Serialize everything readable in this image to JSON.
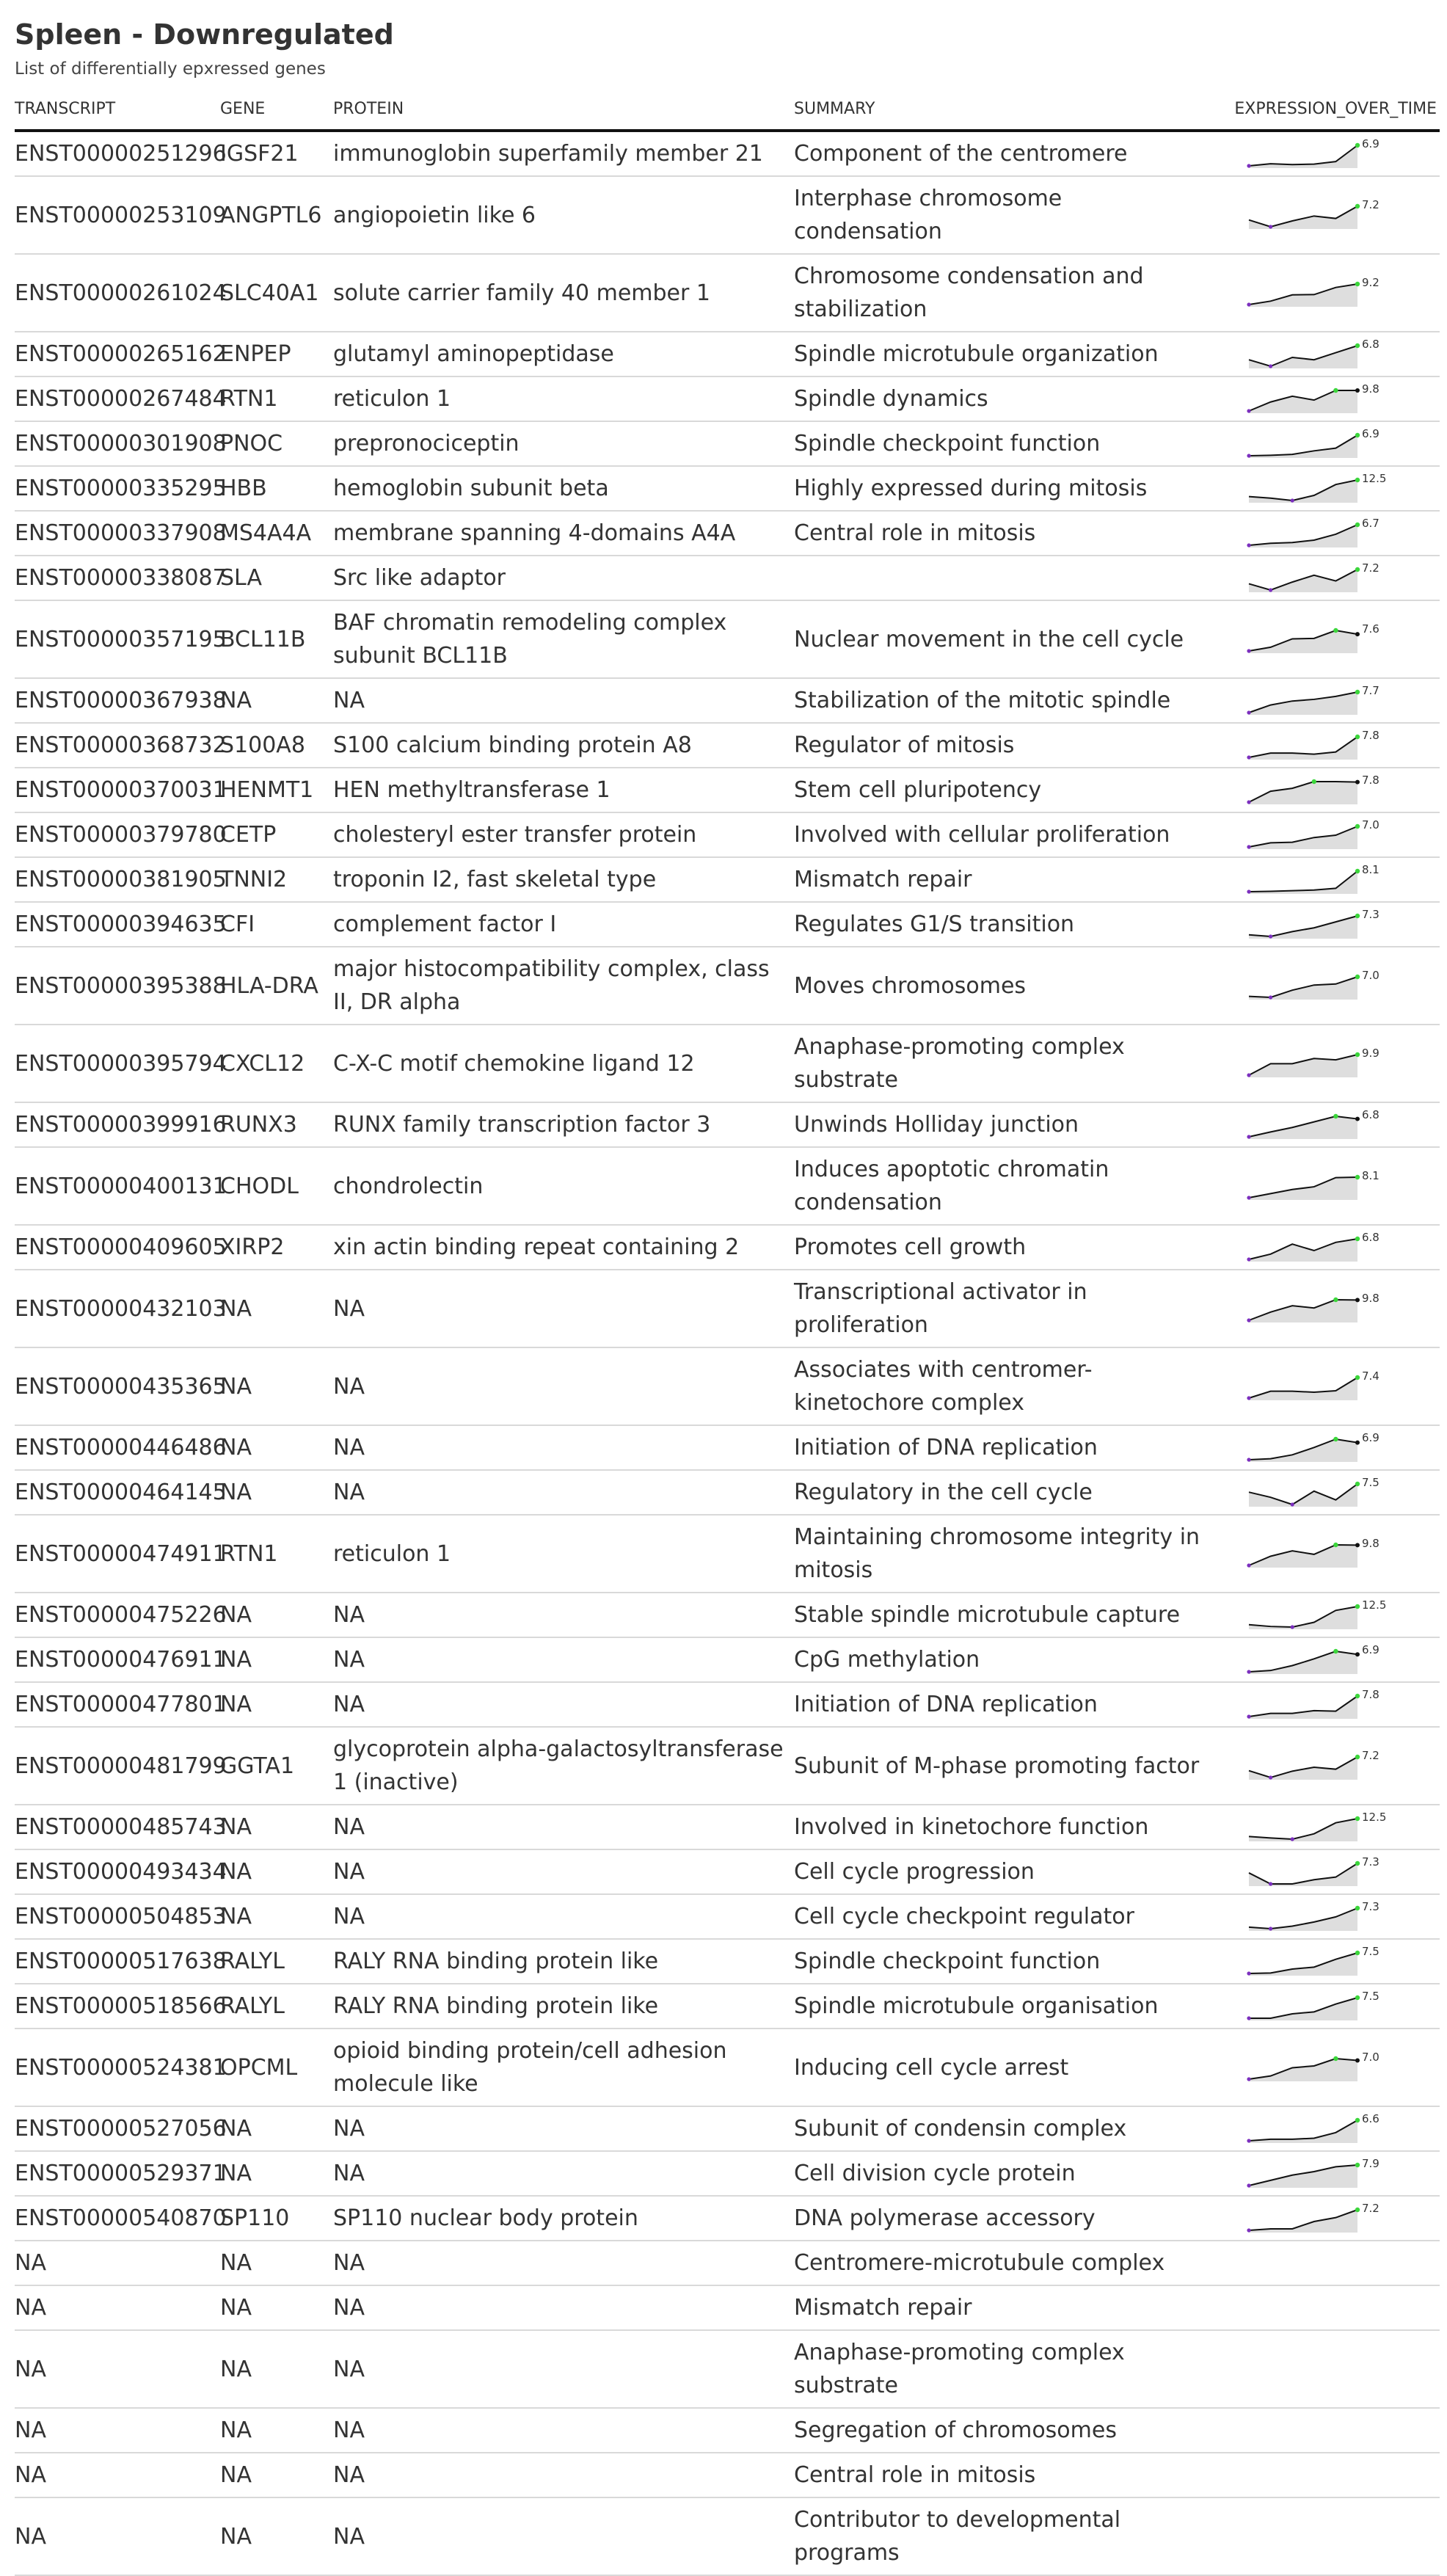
{
  "header": {
    "title": "Spleen - Downregulated",
    "subtitle": "List of differentially epxressed genes"
  },
  "table": {
    "columns": [
      "TRANSCRIPT",
      "GENE",
      "PROTEIN",
      "SUMMARY",
      "EXPRESSION_OVER_TIME"
    ],
    "rows": [
      {
        "transcript": "ENST00000251296",
        "gene": "IGSF21",
        "protein": "immunoglobin superfamily member 21",
        "summary": "Component of the centromere",
        "spark": {
          "values": [
            2.1,
            2.6,
            2.4,
            2.5,
            3.1,
            6.9
          ],
          "label": "6.9",
          "max_idx": 5,
          "lines": 1
        }
      },
      {
        "transcript": "ENST00000253109",
        "gene": "ANGPTL6",
        "protein": "angiopoietin like 6",
        "summary": "Interphase chromosome condensation",
        "spark": {
          "values": [
            4.4,
            3.0,
            4.2,
            5.2,
            4.7,
            7.2
          ],
          "label": "7.2",
          "max_idx": 5,
          "lines": 1
        }
      },
      {
        "transcript": "ENST00000261024",
        "gene": "SLC40A1",
        "protein": "solute carrier family 40 member 1",
        "summary": "Chromosome condensation and stabilization",
        "spark": {
          "values": [
            2.0,
            3.2,
            5.4,
            5.5,
            8.0,
            9.2
          ],
          "label": "9.2",
          "max_idx": 5,
          "lines": 2
        }
      },
      {
        "transcript": "ENST00000265162",
        "gene": "ENPEP",
        "protein": "glutamyl aminopeptidase",
        "summary": "Spindle microtubule organization",
        "spark": {
          "values": [
            4.4,
            3.3,
            4.8,
            4.4,
            5.6,
            6.8
          ],
          "label": "6.8",
          "max_idx": 5,
          "lines": 1
        }
      },
      {
        "transcript": "ENST00000267484",
        "gene": "RTN1",
        "protein": "reticulon 1",
        "summary": "Spindle dynamics",
        "spark": {
          "values": [
            3.4,
            6.2,
            8.0,
            6.8,
            9.8,
            9.8
          ],
          "label": "9.8",
          "max_idx": 4,
          "lines": 1
        }
      },
      {
        "transcript": "ENST00000301908",
        "gene": "PNOC",
        "protein": "prepronociceptin",
        "summary": "Spindle checkpoint function",
        "spark": {
          "values": [
            2.3,
            2.4,
            2.6,
            3.4,
            4.0,
            6.9
          ],
          "label": "6.9",
          "max_idx": 5,
          "lines": 1
        }
      },
      {
        "transcript": "ENST00000335295",
        "gene": "HBB",
        "protein": "hemoglobin subunit beta",
        "summary": "Highly expressed during mitosis",
        "spark": {
          "values": [
            7.0,
            6.5,
            5.7,
            7.4,
            11.0,
            12.5
          ],
          "label": "12.5",
          "max_idx": 5,
          "lines": 1
        }
      },
      {
        "transcript": "ENST00000337908",
        "gene": "MS4A4A",
        "protein": "membrane spanning 4-domains A4A",
        "summary": "Central role in mitosis",
        "spark": {
          "values": [
            1.5,
            2.0,
            2.2,
            2.8,
            4.3,
            6.7
          ],
          "label": "6.7",
          "max_idx": 5,
          "lines": 1
        }
      },
      {
        "transcript": "ENST00000338087",
        "gene": "SLA",
        "protein": "Src like adaptor",
        "summary": "",
        "spark": {
          "values": [
            4.7,
            3.6,
            5.0,
            6.2,
            5.2,
            7.2
          ],
          "label": "7.2",
          "max_idx": 5,
          "lines": 1
        }
      },
      {
        "transcript": "ENST00000357195",
        "gene": "BCL11B",
        "protein": "BAF chromatin remodeling complex subunit BCL11B",
        "summary": "Nuclear movement in the cell cycle",
        "spark": {
          "values": [
            4.0,
            4.8,
            6.6,
            6.7,
            8.4,
            7.6
          ],
          "label": "7.6",
          "max_idx": 4,
          "lines": 2
        }
      },
      {
        "transcript": "ENST00000367938",
        "gene": "NA",
        "protein": "NA",
        "summary": "Stabilization of the mitotic spindle",
        "spark": {
          "values": [
            1.5,
            3.8,
            5.0,
            5.5,
            6.4,
            7.7
          ],
          "label": "7.7",
          "max_idx": 5,
          "lines": 1
        }
      },
      {
        "transcript": "ENST00000368732",
        "gene": "S100A8",
        "protein": "S100 calcium binding protein A8",
        "summary": "Regulator of mitosis",
        "spark": {
          "values": [
            4.0,
            4.8,
            4.8,
            4.6,
            5.0,
            7.8
          ],
          "label": "7.8",
          "max_idx": 5,
          "lines": 1
        }
      },
      {
        "transcript": "ENST00000370031",
        "gene": "HENMT1",
        "protein": "HEN methyltransferase 1",
        "summary": "Stem cell pluripotency",
        "spark": {
          "values": [
            3.0,
            5.6,
            6.3,
            7.9,
            7.9,
            7.8
          ],
          "label": "7.8",
          "max_idx": 3,
          "lines": 1
        }
      },
      {
        "transcript": "ENST00000379780",
        "gene": "CETP",
        "protein": "cholesteryl ester transfer protein",
        "summary": "Involved with cellular proliferation",
        "spark": {
          "values": [
            3.5,
            4.2,
            4.3,
            5.1,
            5.5,
            7.0
          ],
          "label": "7.0",
          "max_idx": 5,
          "lines": 1
        }
      },
      {
        "transcript": "ENST00000381905",
        "gene": "TNNI2",
        "protein": "troponin I2, fast skeletal type",
        "summary": "Mismatch repair",
        "spark": {
          "values": [
            2.0,
            2.1,
            2.3,
            2.5,
            3.0,
            8.1
          ],
          "label": "8.1",
          "max_idx": 5,
          "lines": 1
        }
      },
      {
        "transcript": "ENST00000394635",
        "gene": "CFI",
        "protein": "complement factor I",
        "summary": "Regulates G1/S transition",
        "spark": {
          "values": [
            3.8,
            3.5,
            4.4,
            5.1,
            6.2,
            7.3
          ],
          "label": "7.3",
          "max_idx": 5,
          "lines": 1
        }
      },
      {
        "transcript": "ENST00000395388",
        "gene": "HLA-DRA",
        "protein": "major histocompatibility complex, class II, DR alpha",
        "summary": "Moves chromosomes",
        "spark": {
          "values": [
            3.2,
            3.0,
            4.4,
            5.4,
            5.6,
            7.0
          ],
          "label": "7.0",
          "max_idx": 5,
          "lines": 2
        }
      },
      {
        "transcript": "ENST00000395794",
        "gene": "CXCL12",
        "protein": "C-X-C motif chemokine ligand 12",
        "summary": "Anaphase-promoting complex substrate",
        "spark": {
          "values": [
            4.0,
            7.3,
            7.3,
            8.8,
            8.4,
            9.9
          ],
          "label": "9.9",
          "max_idx": 5,
          "lines": 2
        }
      },
      {
        "transcript": "ENST00000399916",
        "gene": "RUNX3",
        "protein": "RUNX family transcription factor 3",
        "summary": "Unwinds Holliday junction",
        "spark": {
          "values": [
            2.0,
            3.3,
            4.5,
            6.0,
            7.5,
            6.8
          ],
          "label": "6.8",
          "max_idx": 4,
          "lines": 1
        }
      },
      {
        "transcript": "ENST00000400131",
        "gene": "CHODL",
        "protein": "chondrolectin",
        "summary": "Induces apoptotic chromatin condensation",
        "spark": {
          "values": [
            3.6,
            4.5,
            5.4,
            6.0,
            8.0,
            8.1
          ],
          "label": "8.1",
          "max_idx": 5,
          "lines": 2
        }
      },
      {
        "transcript": "ENST00000409605",
        "gene": "XIRP2",
        "protein": "xin actin binding repeat containing 2",
        "summary": "Promotes cell growth",
        "spark": {
          "values": [
            3.3,
            4.2,
            5.9,
            4.8,
            6.2,
            6.8
          ],
          "label": "6.8",
          "max_idx": 5,
          "lines": 1
        }
      },
      {
        "transcript": "ENST00000432103",
        "gene": "NA",
        "protein": "NA",
        "summary": "Transcriptional activator in proliferation",
        "spark": {
          "values": [
            3.4,
            6.0,
            8.0,
            7.3,
            9.9,
            9.8
          ],
          "label": "9.8",
          "max_idx": 4,
          "lines": 1
        }
      },
      {
        "transcript": "ENST00000435365",
        "gene": "NA",
        "protein": "NA",
        "summary": "Associates with centromer-kinetochore complex",
        "spark": {
          "values": [
            3.2,
            4.6,
            4.6,
            4.4,
            4.7,
            7.4
          ],
          "label": "7.4",
          "max_idx": 5,
          "lines": 2
        }
      },
      {
        "transcript": "ENST00000446486",
        "gene": "NA",
        "protein": "NA",
        "summary": "Initiation of DNA replication",
        "spark": {
          "values": [
            3.4,
            3.6,
            4.4,
            5.9,
            7.6,
            6.9
          ],
          "label": "6.9",
          "max_idx": 4,
          "lines": 1
        }
      },
      {
        "transcript": "ENST00000464145",
        "gene": "NA",
        "protein": "NA",
        "summary": "Regulatory in the cell cycle",
        "spark": {
          "values": [
            5.9,
            4.9,
            3.5,
            6.1,
            4.4,
            7.5
          ],
          "label": "7.5",
          "max_idx": 5,
          "lines": 1
        }
      },
      {
        "transcript": "ENST00000474911",
        "gene": "RTN1",
        "protein": "reticulon 1",
        "summary": "Maintaining chromosome integrity in mitosis",
        "spark": {
          "values": [
            3.4,
            6.3,
            8.0,
            6.9,
            9.9,
            9.8
          ],
          "label": "9.8",
          "max_idx": 4,
          "lines": 2
        }
      },
      {
        "transcript": "ENST00000475226",
        "gene": "NA",
        "protein": "NA",
        "summary": "Stable spindle microtubule capture",
        "spark": {
          "values": [
            6.4,
            5.8,
            5.6,
            7.2,
            11.2,
            12.5
          ],
          "label": "12.5",
          "max_idx": 5,
          "lines": 1
        }
      },
      {
        "transcript": "ENST00000476911",
        "gene": "NA",
        "protein": "NA",
        "summary": "CpG methylation",
        "spark": {
          "values": [
            3.0,
            3.3,
            4.4,
            5.9,
            7.6,
            6.9
          ],
          "label": "6.9",
          "max_idx": 4,
          "lines": 1
        }
      },
      {
        "transcript": "ENST00000477801",
        "gene": "NA",
        "protein": "NA",
        "summary": "Initiation of DNA replication",
        "spark": {
          "values": [
            4.0,
            4.6,
            4.6,
            5.1,
            5.0,
            7.8
          ],
          "label": "7.8",
          "max_idx": 5,
          "lines": 1
        }
      },
      {
        "transcript": "ENST00000481799",
        "gene": "GGTA1",
        "protein": "glycoprotein alpha-galactosyltransferase 1 (inactive)",
        "summary": "Subunit of M-phase promoting factor",
        "spark": {
          "values": [
            4.4,
            3.0,
            4.3,
            5.1,
            4.7,
            7.2
          ],
          "label": "7.2",
          "max_idx": 5,
          "lines": 2
        }
      },
      {
        "transcript": "ENST00000485743",
        "gene": "NA",
        "protein": "NA",
        "summary": "Involved in kinetochore function",
        "spark": {
          "values": [
            6.5,
            6.0,
            5.6,
            7.4,
            11.1,
            12.5
          ],
          "label": "12.5",
          "max_idx": 5,
          "lines": 1
        }
      },
      {
        "transcript": "ENST00000493434",
        "gene": "NA",
        "protein": "NA",
        "summary": "Cell cycle progression",
        "spark": {
          "values": [
            5.5,
            3.4,
            3.4,
            4.2,
            4.7,
            7.3
          ],
          "label": "7.3",
          "max_idx": 5,
          "lines": 1
        }
      },
      {
        "transcript": "ENST00000504853",
        "gene": "NA",
        "protein": "NA",
        "summary": "Cell cycle checkpoint regulator",
        "spark": {
          "values": [
            3.6,
            3.3,
            3.8,
            4.6,
            5.6,
            7.3
          ],
          "label": "7.3",
          "max_idx": 5,
          "lines": 1
        }
      },
      {
        "transcript": "ENST00000517638",
        "gene": "RALYL",
        "protein": "RALY RNA binding protein like",
        "summary": "Spindle checkpoint function",
        "spark": {
          "values": [
            3.3,
            3.4,
            4.2,
            4.6,
            6.2,
            7.5
          ],
          "label": "7.5",
          "max_idx": 5,
          "lines": 1
        }
      },
      {
        "transcript": "ENST00000518566",
        "gene": "RALYL",
        "protein": "RALY RNA binding protein like",
        "summary": "Spindle microtubule organisation",
        "spark": {
          "values": [
            3.3,
            3.3,
            4.2,
            4.6,
            6.2,
            7.5
          ],
          "label": "7.5",
          "max_idx": 5,
          "lines": 1
        }
      },
      {
        "transcript": "ENST00000524381",
        "gene": "OPCML",
        "protein": "opioid binding protein/cell adhesion molecule like",
        "summary": "Inducing cell cycle arrest",
        "spark": {
          "values": [
            2.9,
            3.6,
            5.4,
            5.8,
            7.4,
            7.0
          ],
          "label": "7.0",
          "max_idx": 4,
          "lines": 2
        }
      },
      {
        "transcript": "ENST00000527056",
        "gene": "NA",
        "protein": "NA",
        "summary": "Subunit of condensin complex",
        "spark": {
          "values": [
            2.6,
            2.9,
            2.9,
            3.1,
            4.2,
            6.6
          ],
          "label": "6.6",
          "max_idx": 5,
          "lines": 1
        }
      },
      {
        "transcript": "ENST00000529371",
        "gene": "NA",
        "protein": "NA",
        "summary": "Cell division cycle protein",
        "spark": {
          "values": [
            2.0,
            3.5,
            5.0,
            6.0,
            7.4,
            7.9
          ],
          "label": "7.9",
          "max_idx": 5,
          "lines": 1
        }
      },
      {
        "transcript": "ENST00000540870",
        "gene": "SP110",
        "protein": "SP110 nuclear body protein",
        "summary": "DNA polymerase accessory",
        "spark": {
          "values": [
            3.0,
            3.3,
            3.3,
            4.8,
            5.6,
            7.2
          ],
          "label": "7.2",
          "max_idx": 5,
          "lines": 1
        }
      },
      {
        "transcript": "NA",
        "gene": "NA",
        "protein": "NA",
        "summary": "Centromere-microtubule complex",
        "spark": null,
        "lines": 1
      },
      {
        "transcript": "NA",
        "gene": "NA",
        "protein": "NA",
        "summary": "Mismatch repair",
        "spark": null,
        "lines": 1
      },
      {
        "transcript": "NA",
        "gene": "NA",
        "protein": "NA",
        "summary": "Anaphase-promoting complex substrate",
        "spark": null,
        "lines": 2
      },
      {
        "transcript": "NA",
        "gene": "NA",
        "protein": "NA",
        "summary": "Segregation of chromosomes",
        "spark": null,
        "lines": 1
      },
      {
        "transcript": "NA",
        "gene": "NA",
        "protein": "NA",
        "summary": "Central role in mitosis",
        "spark": null,
        "lines": 1
      },
      {
        "transcript": "NA",
        "gene": "NA",
        "protein": "NA",
        "summary": "Contributor to developmental programs",
        "spark": null,
        "lines": 2
      }
    ]
  },
  "colors": {
    "spark_line": "#111111",
    "spark_fill": "#dedede",
    "min_marker": "#7b2fbe",
    "max_marker": "#3bd63b",
    "last_marker": "#111111"
  }
}
